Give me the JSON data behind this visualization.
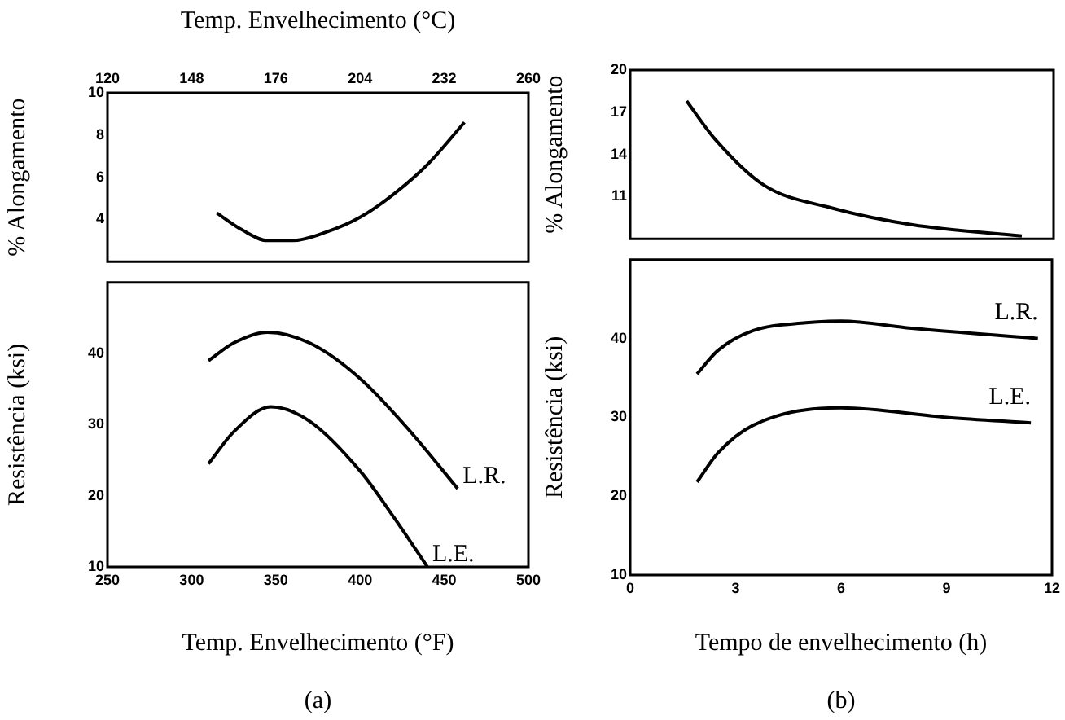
{
  "chart_data": [
    {
      "type": "line",
      "x2label": "Temp. Envelhecimento (°C)",
      "ylabel": "% Alongamento",
      "xlim": [
        250,
        500
      ],
      "x2lim": [
        120,
        260
      ],
      "x2ticks": [
        120,
        148,
        176,
        204,
        232,
        260
      ],
      "ylim": [
        2,
        10
      ],
      "yticks": [
        4,
        6,
        8,
        10
      ],
      "tick_labels": "y",
      "series": [
        {
          "color": "#000000",
          "x": [
            315,
            330,
            345,
            360,
            380,
            400,
            420,
            440,
            462
          ],
          "values": [
            4.3,
            3.5,
            3.0,
            3.0,
            3.4,
            4.1,
            5.2,
            6.6,
            8.6
          ]
        }
      ]
    },
    {
      "type": "line",
      "xlabel": "Temp. Envelhecimento (°F)",
      "ylabel": "Resistência (ksi)",
      "xlim": [
        250,
        500
      ],
      "xticks": [
        250,
        300,
        350,
        400,
        450,
        500
      ],
      "ylim": [
        10,
        50
      ],
      "yticks": [
        10,
        20,
        30,
        40
      ],
      "annotations": [
        "(a)"
      ],
      "series": [
        {
          "name": "L.R.",
          "color": "#000000",
          "x": [
            310,
            325,
            345,
            370,
            400,
            430,
            458
          ],
          "values": [
            39,
            41.5,
            43,
            41.5,
            36.5,
            29,
            21
          ]
        },
        {
          "name": "L.E.",
          "color": "#000000",
          "x": [
            310,
            325,
            347,
            370,
            400,
            420,
            440
          ],
          "values": [
            24.5,
            29,
            32.5,
            30.5,
            23.5,
            17,
            10
          ]
        }
      ]
    },
    {
      "type": "line",
      "ylabel": "% Alongamento",
      "xlim": [
        0,
        12
      ],
      "ylim": [
        8,
        20
      ],
      "yticks": [
        11,
        14,
        17,
        20
      ],
      "tick_labels": "y",
      "series": [
        {
          "color": "#000000",
          "x": [
            1.6,
            2.4,
            3.8,
            5.7,
            8.0,
            11.1
          ],
          "values": [
            17.8,
            15.1,
            11.8,
            10.2,
            9.0,
            8.2
          ]
        }
      ]
    },
    {
      "type": "line",
      "xlabel": "Tempo de envelhecimento (h)",
      "ylabel": "Resistência (ksi)",
      "xlim": [
        0,
        12
      ],
      "xticks": [
        0,
        3,
        6,
        9,
        12
      ],
      "ylim": [
        10,
        50
      ],
      "yticks": [
        10,
        20,
        30,
        40
      ],
      "annotations": [
        "(b)"
      ],
      "series": [
        {
          "name": "L.R.",
          "color": "#000000",
          "x": [
            1.9,
            2.5,
            3.5,
            5,
            6,
            8,
            11.6
          ],
          "values": [
            35.5,
            38.5,
            41,
            42,
            42.2,
            41.3,
            40
          ]
        },
        {
          "name": "L.E.",
          "color": "#000000",
          "x": [
            1.9,
            2.5,
            3.5,
            6,
            9,
            11.4
          ],
          "values": [
            21.8,
            25.5,
            29,
            31.2,
            30,
            29.3
          ]
        }
      ]
    }
  ]
}
